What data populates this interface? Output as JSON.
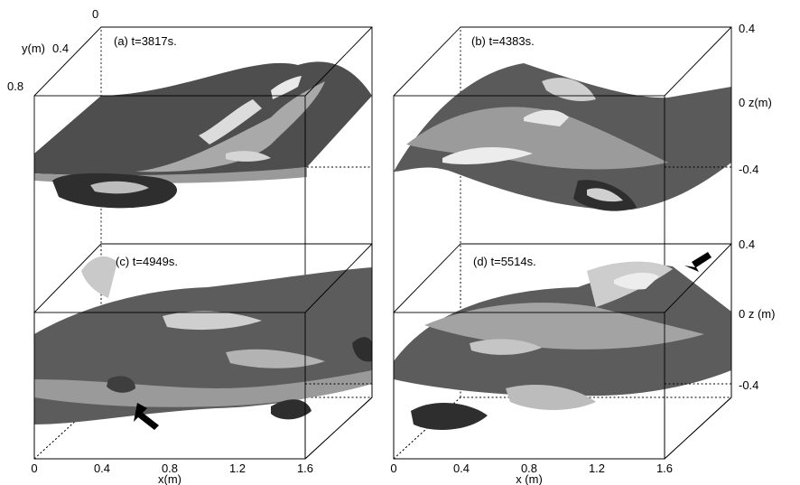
{
  "panels": [
    {
      "id": "a",
      "label": "(a) t=3817s."
    },
    {
      "id": "b",
      "label": "(b) t=4383s."
    },
    {
      "id": "c",
      "label": "(c) t=4949s."
    },
    {
      "id": "d",
      "label": "(d) t=5514s."
    }
  ],
  "y_axis": {
    "label": "y(m)",
    "ticks": [
      "0",
      "0.4",
      "0.8"
    ]
  },
  "z_axis": {
    "top": {
      "ticks": [
        "0.4",
        "-0.4"
      ],
      "label": "0 z(m)"
    },
    "bottom": {
      "ticks": [
        "0.4",
        "-0.4"
      ],
      "label": "0 z (m)"
    }
  },
  "x_axis_left": {
    "ticks": [
      "0",
      "0.4",
      "0.8",
      "1.2",
      "1.6"
    ],
    "label": "x(m)"
  },
  "x_axis_right": {
    "ticks": [
      "0",
      "0.4",
      "0.8",
      "1.2",
      "1.6"
    ],
    "label": "x (m)"
  },
  "colors": {
    "dark": "#4a4a4a",
    "mid": "#7d7d7d",
    "light": "#b9b9b9",
    "pale": "#e2e2e2"
  }
}
